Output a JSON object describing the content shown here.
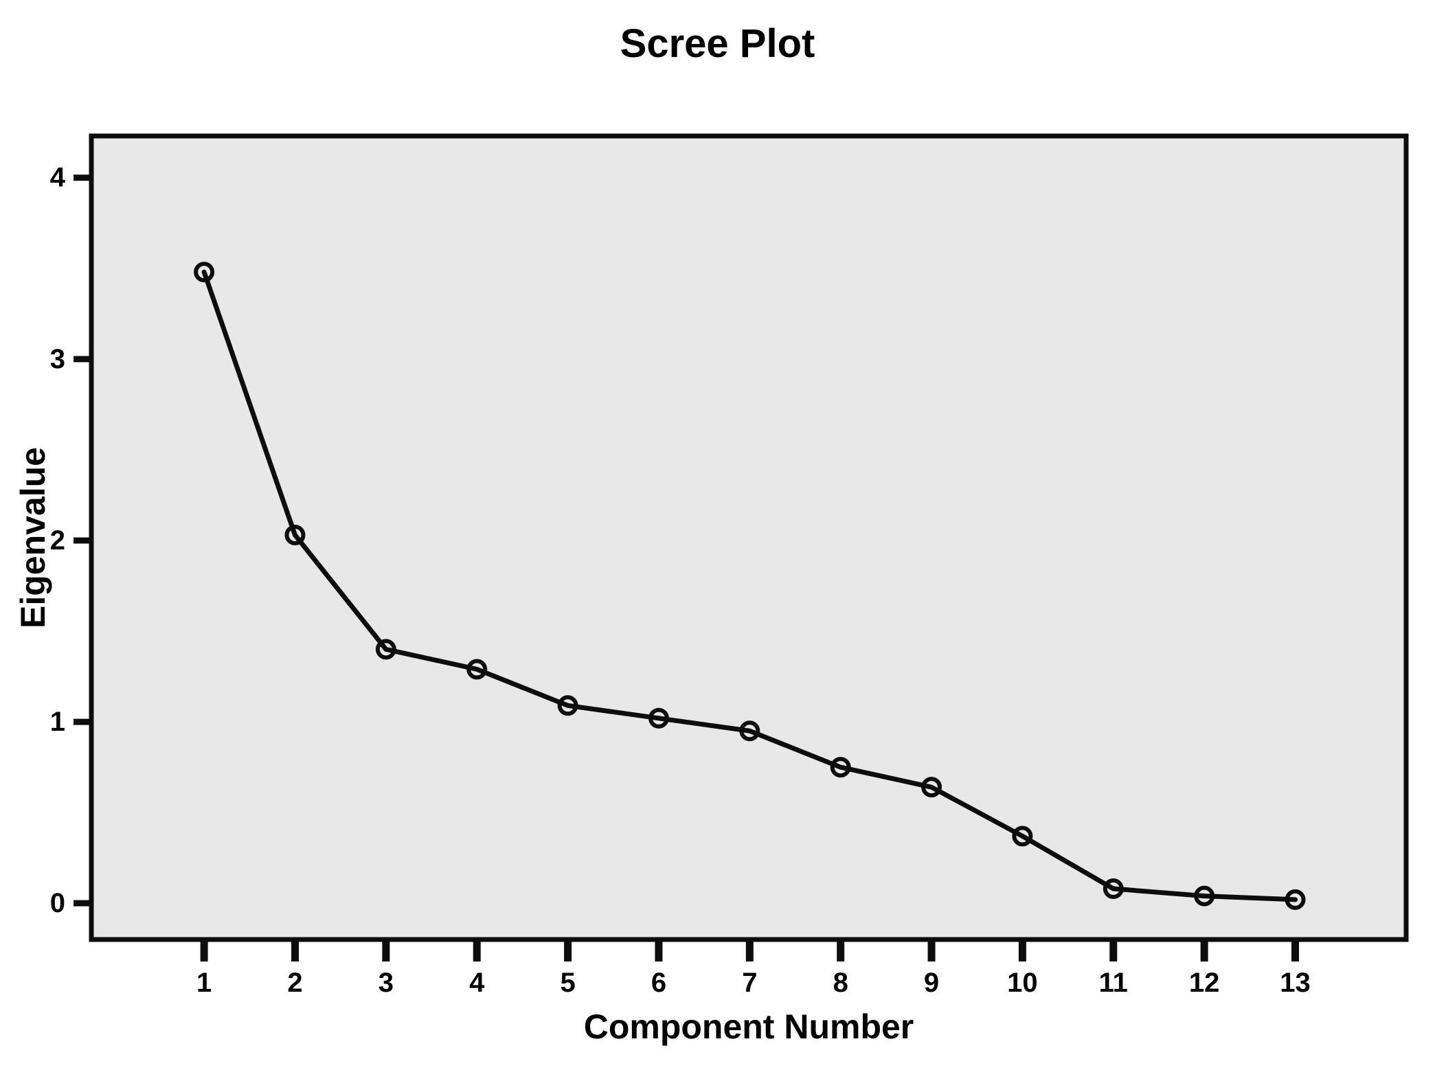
{
  "figure": {
    "background": "#ffffff",
    "plot_background": "#e8e8e8",
    "line_color": "#0d0d0d",
    "text_color": "#000000"
  },
  "chart_data": {
    "type": "line",
    "title": "Scree Plot",
    "xlabel": "Component Number",
    "ylabel": "Eigenvalue",
    "x": [
      1,
      2,
      3,
      4,
      5,
      6,
      7,
      8,
      9,
      10,
      11,
      12,
      13
    ],
    "values": [
      3.48,
      2.03,
      1.4,
      1.29,
      1.09,
      1.02,
      0.95,
      0.75,
      0.64,
      0.37,
      0.08,
      0.04,
      0.02
    ],
    "series": [
      {
        "name": "Eigenvalue",
        "values": [
          3.48,
          2.03,
          1.4,
          1.29,
          1.09,
          1.02,
          0.95,
          0.75,
          0.64,
          0.37,
          0.08,
          0.04,
          0.02
        ]
      }
    ],
    "xticks": [
      1,
      2,
      3,
      4,
      5,
      6,
      7,
      8,
      9,
      10,
      11,
      12,
      13
    ],
    "yticks": [
      0,
      1,
      2,
      3,
      4
    ],
    "xlim": [
      -0.24,
      14.22
    ],
    "ylim": [
      -0.2,
      4.23
    ],
    "grid": false,
    "legend": null,
    "marker": "open-circle",
    "line_style": "solid"
  }
}
